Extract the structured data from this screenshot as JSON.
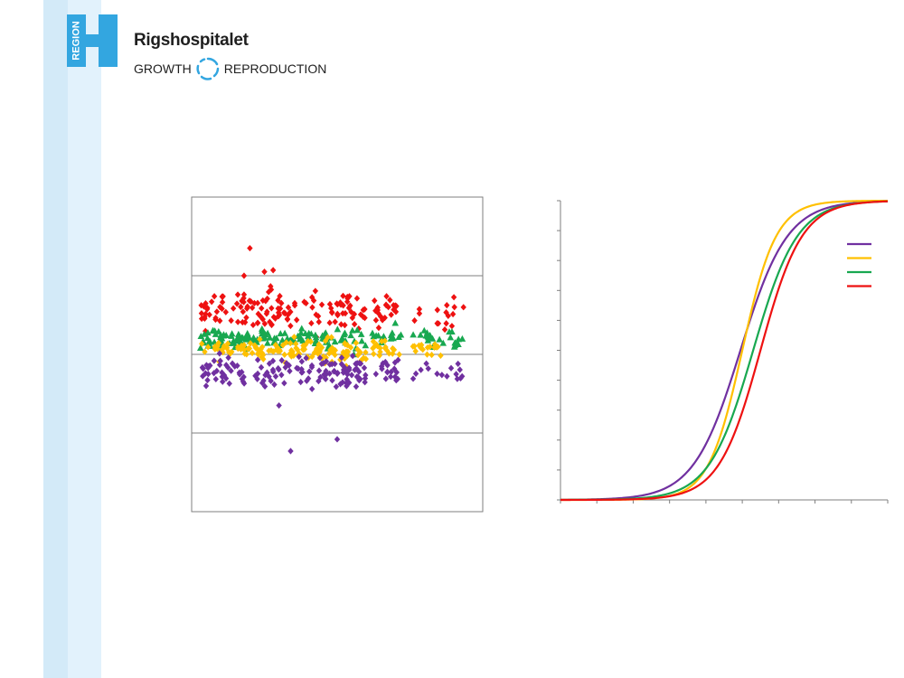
{
  "header": {
    "logo_text": "REGION",
    "brand_name": "Rigshospitalet",
    "tagline_left": "GROWTH",
    "tagline_right": "REPRODUCTION"
  },
  "colors": {
    "band_dark": "#d3eaf8",
    "band_light": "#e2f2fc",
    "logo_blue": "#33a6e0",
    "red": "#ee1111",
    "green": "#18a850",
    "yellow": "#ffc000",
    "purple": "#7030a0"
  },
  "chart_data": [
    {
      "type": "scatter",
      "grid": "horizontal",
      "ylim": [
        -2,
        2
      ],
      "xlim": [
        0,
        1
      ],
      "y_gridlines": [
        -1,
        0,
        1
      ],
      "series": [
        {
          "color": "#ee1111",
          "marker": "diamond",
          "center": 0.55,
          "spread": 0.28,
          "x_max": 0.94,
          "outliers": [
            [
              0.2,
              1.35
            ],
            [
              0.28,
              1.07
            ],
            [
              0.25,
              1.05
            ],
            [
              0.18,
              1.0
            ]
          ]
        },
        {
          "color": "#18a850",
          "marker": "triangle",
          "center": 0.2,
          "spread": 0.06,
          "x_max": 0.94,
          "outliers": []
        },
        {
          "color": "#ffc000",
          "marker": "diamond",
          "center": 0.05,
          "spread": 0.07,
          "x_max": 0.86,
          "outliers": []
        },
        {
          "color": "#7030a0",
          "marker": "diamond",
          "center": -0.22,
          "spread": 0.22,
          "x_max": 0.94,
          "outliers": [
            [
              0.34,
              -1.23
            ],
            [
              0.5,
              -1.08
            ],
            [
              0.3,
              -0.65
            ]
          ]
        }
      ]
    },
    {
      "type": "line",
      "grid": "none",
      "legend_position": "right",
      "xlim": [
        0,
        9
      ],
      "ylim": [
        0,
        1
      ],
      "x_ticks": 9,
      "y_ticks": 10,
      "series": [
        {
          "color": "#7030a0",
          "midpoint": 4.95,
          "steepness": 1.55
        },
        {
          "color": "#ffc000",
          "midpoint": 5.0,
          "steepness": 2.15
        },
        {
          "color": "#18a850",
          "midpoint": 5.3,
          "steepness": 1.65
        },
        {
          "color": "#ee1111",
          "midpoint": 5.5,
          "steepness": 1.75
        }
      ]
    }
  ]
}
